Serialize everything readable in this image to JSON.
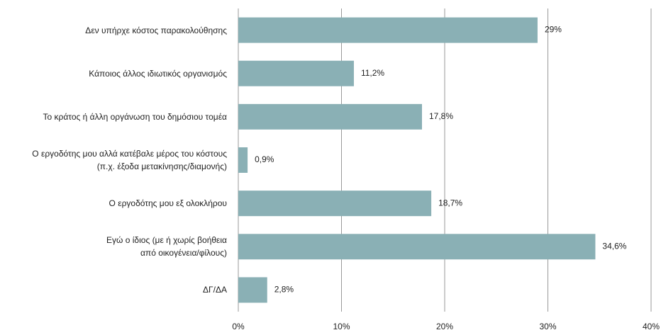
{
  "chart_data": {
    "type": "barh",
    "categories": [
      "Δεν υπήρχε κόστος παρακολούθησης",
      "Κάποιος άλλος ιδιωτικός οργανισμός",
      "Το κράτος ή άλλη οργάνωση του δημόσιου τομέα",
      "Ο εργοδότης μου αλλά κατέβαλε μέρος του κόστους\n(π.χ. έξοδα μετακίνησης/διαμονής)",
      "Ο εργοδότης μου εξ ολοκλήρου",
      "Εγώ ο ίδιος (με ή χωρίς βοήθεια\nαπό οικογένεια/φίλους)",
      "ΔΓ/ΔΑ"
    ],
    "values": [
      29,
      11.2,
      17.8,
      0.9,
      18.7,
      34.6,
      2.8
    ],
    "value_labels": [
      "29%",
      "11,2%",
      "17,8%",
      "0,9%",
      "18,7%",
      "34,6%",
      "2,8%"
    ],
    "color": "#8ab0b5",
    "xlim": [
      0,
      40
    ],
    "xticks": [
      {
        "value": 0,
        "label": "0%"
      },
      {
        "value": 10,
        "label": "10%"
      },
      {
        "value": 20,
        "label": "20%"
      },
      {
        "value": 30,
        "label": "30%"
      },
      {
        "value": 40,
        "label": "40%"
      }
    ],
    "grid": true
  }
}
